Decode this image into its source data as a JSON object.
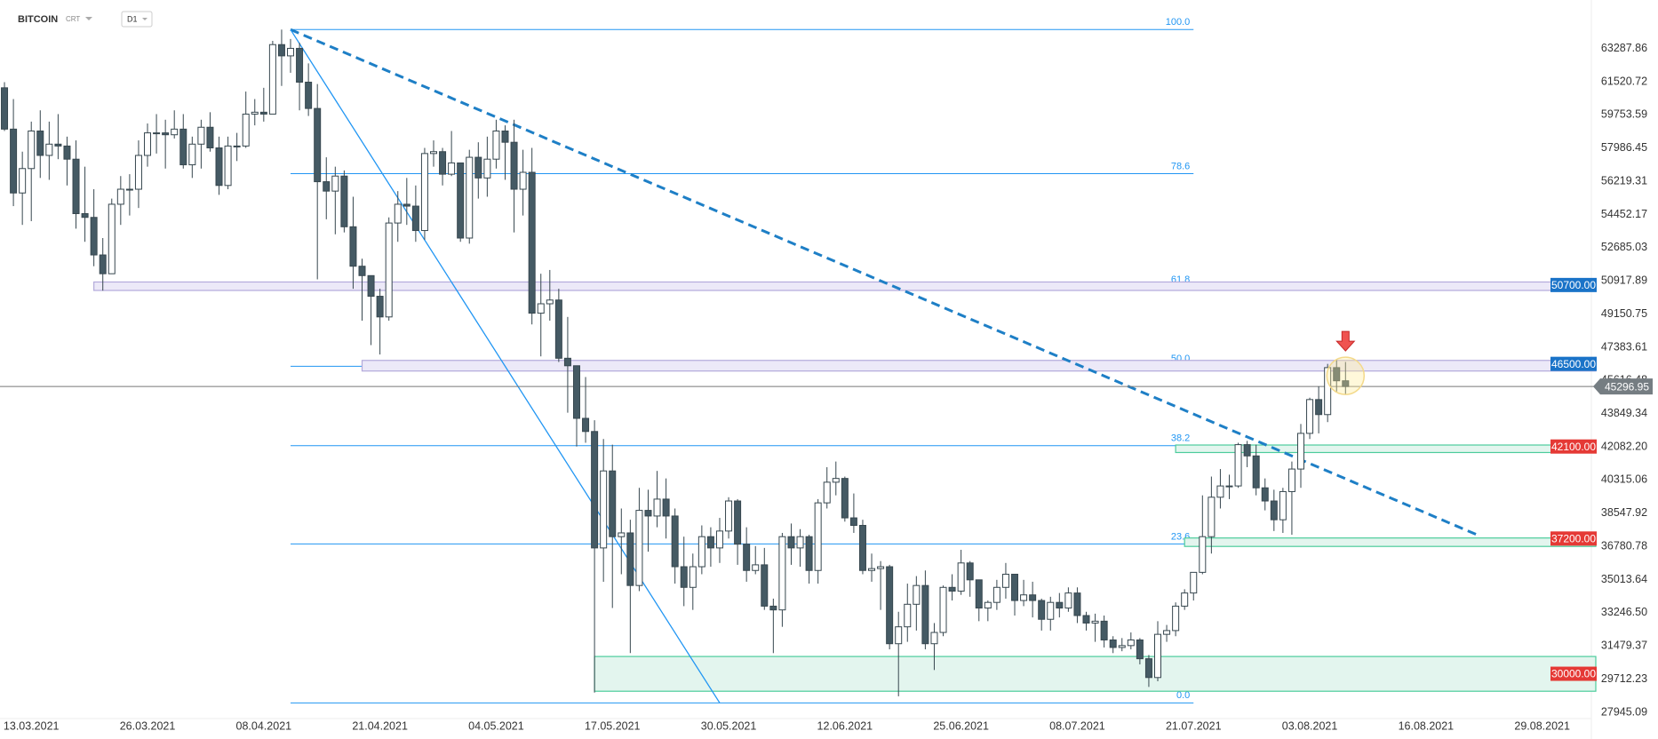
{
  "chart_data": {
    "type": "candlestick",
    "title": "BITCOIN",
    "subtitle": "CRT",
    "timeframe": "D1",
    "categories": [
      null,
      null,
      null,
      "13.03.2021",
      null,
      null,
      null,
      null,
      null,
      null,
      null,
      null,
      null,
      null,
      null,
      null,
      "26.03.2021",
      null,
      null,
      null,
      null,
      null,
      null,
      null,
      null,
      null,
      null,
      null,
      null,
      "08.04.2021",
      null,
      null,
      null,
      null,
      null,
      null,
      null,
      null,
      null,
      null,
      null,
      null,
      "21.04.2021",
      null,
      null,
      null,
      null,
      null,
      null,
      null,
      null,
      null,
      null,
      null,
      null,
      "04.05.2021",
      null,
      null,
      null,
      null,
      null,
      null,
      null,
      null,
      null,
      null,
      null,
      null,
      "17.05.2021",
      null,
      null,
      null,
      null,
      null,
      null,
      null,
      null,
      null,
      null,
      null,
      null,
      "30.05.2021",
      null,
      null,
      null,
      null,
      null,
      null,
      null,
      null,
      null,
      null,
      null,
      null,
      "12.06.2021",
      null,
      null,
      null,
      null,
      null,
      null,
      null,
      null,
      null,
      null,
      null,
      null,
      "25.06.2021",
      null,
      null,
      null,
      null,
      null,
      null,
      null,
      null,
      null,
      null,
      null,
      null,
      "08.07.2021",
      null,
      null,
      null,
      null,
      null,
      null,
      null,
      null,
      null,
      null,
      null,
      null,
      "21.07.2021",
      null,
      null,
      null,
      null,
      null,
      null,
      null,
      null,
      null,
      null,
      null,
      null,
      "03.08.2021",
      null,
      null,
      null,
      null,
      null,
      null,
      null,
      null,
      null,
      null,
      null,
      null,
      "16.08.2021",
      null,
      null,
      null,
      null,
      null,
      null,
      null,
      null,
      null,
      null,
      null,
      null,
      "29.08.2021",
      null,
      null,
      null,
      null,
      null
    ],
    "open": [
      61200,
      59000,
      55600,
      56900,
      58900,
      57600,
      58200,
      58100,
      57400,
      54500,
      54300,
      52300,
      51300,
      55000,
      55800,
      55800,
      57600,
      58800,
      58800,
      58700,
      59000,
      57100,
      58200,
      59100,
      58000,
      56000,
      58100,
      58100,
      59800,
      59900,
      59800,
      63500,
      62900,
      63300,
      61500,
      60100,
      56200,
      55700,
      56500,
      53800,
      51700,
      51200,
      50100,
      49000,
      54000,
      55000,
      54900,
      53600,
      57700,
      57800,
      56600,
      57200,
      53200,
      57500,
      56400,
      57400,
      58900,
      58300,
      55800,
      56700,
      49200,
      49700,
      49900,
      46800,
      46400,
      43600,
      42900,
      36700,
      40800,
      37300,
      37500,
      34700,
      38700,
      38400,
      39300,
      38400,
      35700,
      34600,
      35700,
      37300,
      36700,
      37600,
      39200,
      36900,
      35500,
      35800,
      33600,
      33400,
      37300,
      36700,
      37300,
      35500,
      39100,
      40200,
      40400,
      38300,
      37900,
      35500,
      35600,
      35700,
      31600,
      32500,
      33700,
      34700,
      31600,
      32200,
      34600,
      34400,
      35900,
      35000,
      33500,
      33800,
      34600,
      35300,
      33900,
      34200,
      33900,
      32900,
      33800,
      33500,
      34300,
      33100,
      32700,
      32800,
      31800,
      31400,
      31500,
      31800,
      30800,
      29800,
      32100,
      32300,
      33600,
      34300,
      35400,
      37300,
      39400,
      40000,
      40000,
      42200,
      41600,
      39900,
      39200,
      38200,
      39700,
      40900,
      42800,
      44600,
      43800,
      46300,
      45600,
      null,
      null,
      null,
      null,
      null,
      null,
      null,
      null,
      null,
      null,
      null,
      null,
      null,
      null,
      null,
      null,
      null,
      null,
      null,
      null,
      null,
      null,
      null,
      null,
      null,
      null,
      null
    ],
    "high": [
      61500,
      60600,
      57800,
      59400,
      60000,
      59400,
      59800,
      58600,
      58400,
      57000,
      55800,
      53200,
      55300,
      56500,
      56600,
      58400,
      59300,
      59800,
      59500,
      60000,
      59800,
      58600,
      59500,
      59900,
      58600,
      58600,
      58800,
      61000,
      60600,
      61200,
      63700,
      64300,
      63800,
      63600,
      62500,
      61400,
      57500,
      57000,
      56800,
      55400,
      52100,
      51200,
      50500,
      54300,
      55700,
      56400,
      56000,
      58000,
      58400,
      58000,
      58900,
      57200,
      57900,
      58300,
      58600,
      59500,
      59200,
      59500,
      57900,
      58000,
      51300,
      51500,
      50500,
      49000,
      46400,
      45800,
      43500,
      42500,
      42200,
      38800,
      38200,
      39900,
      39800,
      40800,
      40400,
      38800,
      37300,
      36400,
      37900,
      37800,
      38300,
      39400,
      39300,
      37800,
      36800,
      36700,
      34000,
      37500,
      38000,
      37700,
      37400,
      39300,
      41000,
      41300,
      40500,
      39600,
      38200,
      36400,
      36000,
      35800,
      33300,
      34800,
      35200,
      35500,
      32700,
      34700,
      35300,
      36600,
      36000,
      35000,
      33900,
      35000,
      35900,
      35300,
      35000,
      34900,
      34000,
      34100,
      34300,
      34600,
      34600,
      33300,
      33200,
      33100,
      32000,
      31900,
      32200,
      31900,
      31000,
      32800,
      32600,
      33800,
      34500,
      35400,
      39500,
      40500,
      40900,
      40600,
      42300,
      42400,
      42200,
      40400,
      39800,
      39900,
      41300,
      43300,
      44700,
      45300,
      46500,
      46700,
      46600,
      null,
      null,
      null,
      null,
      null,
      null,
      null,
      null,
      null,
      null,
      null,
      null,
      null,
      null,
      null,
      null,
      null,
      null,
      null,
      null,
      null,
      null,
      null,
      null,
      null,
      null,
      null
    ],
    "low": [
      58900,
      54900,
      53900,
      54100,
      56400,
      56300,
      57400,
      56000,
      53700,
      53000,
      51700,
      50400,
      51300,
      53900,
      54400,
      54800,
      57000,
      57700,
      56900,
      58500,
      56900,
      56400,
      56900,
      57800,
      55500,
      55800,
      57300,
      58000,
      59200,
      59400,
      59800,
      61300,
      62000,
      60000,
      59700,
      51000,
      54200,
      53400,
      53500,
      50500,
      48800,
      47500,
      47000,
      48800,
      53000,
      53900,
      53000,
      53100,
      57000,
      56000,
      56500,
      53000,
      52900,
      55300,
      55400,
      56900,
      56300,
      53500,
      54400,
      48600,
      46900,
      48800,
      46600,
      43900,
      42100,
      42300,
      29000,
      34900,
      33500,
      35300,
      31100,
      34400,
      36500,
      37800,
      37200,
      34800,
      33600,
      33400,
      35300,
      35700,
      35900,
      37200,
      35800,
      34900,
      35300,
      33400,
      31100,
      32500,
      35800,
      35700,
      34800,
      34800,
      38800,
      39500,
      38100,
      37500,
      35300,
      34900,
      33400,
      31300,
      28800,
      31700,
      32300,
      31300,
      30200,
      32000,
      33900,
      34200,
      34100,
      32800,
      32800,
      33400,
      34000,
      33100,
      33600,
      33000,
      32300,
      32300,
      33000,
      33300,
      32700,
      32300,
      31700,
      31400,
      31100,
      31200,
      31300,
      30500,
      29300,
      29600,
      31700,
      32000,
      33400,
      33900,
      35300,
      36400,
      38800,
      39300,
      39900,
      41000,
      39500,
      38700,
      37600,
      37500,
      37400,
      39900,
      42500,
      42800,
      43400,
      45000,
      44900,
      null,
      null,
      null,
      null,
      null,
      null,
      null,
      null,
      null,
      null,
      null,
      null,
      null,
      null,
      null,
      null,
      null,
      null,
      null,
      null,
      null,
      null,
      null,
      null,
      null,
      null,
      null
    ],
    "close": [
      59000,
      55600,
      56900,
      58900,
      57600,
      58200,
      58100,
      57400,
      54500,
      54300,
      52300,
      51300,
      55000,
      55800,
      55800,
      57600,
      58800,
      58800,
      58700,
      59000,
      57100,
      58200,
      59100,
      58000,
      56000,
      58100,
      58100,
      59800,
      59900,
      59800,
      63500,
      62900,
      63300,
      61500,
      60100,
      56200,
      55700,
      56500,
      53800,
      51700,
      51200,
      50100,
      49000,
      54000,
      55000,
      54900,
      53600,
      57700,
      57800,
      56600,
      57200,
      53200,
      57500,
      56400,
      57400,
      58900,
      58300,
      55800,
      56700,
      49200,
      49700,
      49900,
      46800,
      46400,
      43600,
      42900,
      36700,
      40800,
      37300,
      37500,
      34700,
      38700,
      38400,
      39300,
      38400,
      35700,
      34600,
      35700,
      37300,
      36700,
      37600,
      39200,
      36900,
      35500,
      35800,
      33600,
      33400,
      37300,
      36700,
      37300,
      35500,
      39100,
      40200,
      40400,
      38300,
      37900,
      35500,
      35600,
      35700,
      31600,
      32500,
      33700,
      34700,
      31600,
      32200,
      34600,
      34400,
      35900,
      35000,
      33500,
      33800,
      34600,
      35300,
      33900,
      34200,
      33900,
      32900,
      33800,
      33500,
      34300,
      33100,
      32700,
      32800,
      31800,
      31400,
      31500,
      31800,
      30800,
      29800,
      32100,
      32300,
      33600,
      34300,
      35400,
      37300,
      39400,
      40000,
      40000,
      42200,
      41600,
      39900,
      39200,
      38200,
      39700,
      40900,
      42800,
      44600,
      43800,
      46300,
      45600,
      45296.95,
      null,
      null,
      null,
      null,
      null,
      null,
      null,
      null,
      null,
      null,
      null,
      null,
      null,
      null,
      null,
      null,
      null,
      null,
      null,
      null,
      null,
      null,
      null,
      null,
      null,
      null,
      null
    ],
    "up_color": "#ffffff",
    "down_color": "#455a64",
    "outline_color": "#37474f",
    "ylim": [
      27614,
      65875
    ],
    "yticks": [
      63287.86,
      61520.72,
      59753.59,
      57986.45,
      56219.31,
      54452.17,
      52685.03,
      50917.89,
      49150.75,
      47383.61,
      45616.48,
      43849.34,
      {
        "value": 42082.2,
        "label": "42082.20"
      },
      40315.06,
      38547.92,
      36780.78,
      35013.64,
      {
        "value": 33246.5,
        "label": "33246.50"
      },
      31479.37,
      29712.23,
      27945.09
    ],
    "grid": false,
    "last_price": 45296.95,
    "fibonacci": {
      "start": 32,
      "end": 133,
      "color": "#2196f3",
      "levels": [
        {
          "label": "100.0",
          "price": 64300
        },
        {
          "label": "78.6",
          "price": 56628
        },
        {
          "label": "61.8",
          "price": 50605
        },
        {
          "label": "50.0",
          "price": 46375
        },
        {
          "label": "38.2",
          "price": 42145
        },
        {
          "label": "23.6",
          "price": 36911
        },
        {
          "label": "0.0",
          "price": 28450
        }
      ]
    },
    "zones": [
      {
        "start": 10,
        "top": 50860,
        "bottom": 50410,
        "fill": "#ece9f8",
        "stroke": "#b3aadb",
        "badge_color": "#1a73c8",
        "level": {
          "value": 50700,
          "label": "50700.00"
        }
      },
      {
        "start": 40,
        "top": 46685,
        "bottom": 46120,
        "fill": "#ece9f8",
        "stroke": "#b3aadb",
        "badge_color": "#1a73c8",
        "level": {
          "value": 46500,
          "label": "46500.00"
        }
      },
      {
        "start": 131,
        "top": 42180,
        "bottom": 41780,
        "fill": "#e3f5ee",
        "stroke": "#4ccc9c",
        "badge_color": "#e53935",
        "level": {
          "value": 42100,
          "label": "42100.00"
        }
      },
      {
        "start": 132,
        "top": 37230,
        "bottom": 36780,
        "fill": "#e3f5ee",
        "stroke": "#4ccc9c",
        "badge_color": "#e53935",
        "level": {
          "value": 37200,
          "label": "37200.00"
        }
      },
      {
        "start": 66,
        "top": 30920,
        "bottom": 29070,
        "fill": "#e3f5ee",
        "stroke": "#4ccc9c",
        "badge_color": "#e53935",
        "level": {
          "value": 30000,
          "label": "30000.00"
        }
      }
    ],
    "trendlines": [
      {
        "from": [
          32,
          64300
        ],
        "to": [
          165,
          37343
        ],
        "color": "#1e7fc6",
        "dashed": true
      },
      {
        "from": [
          32,
          64300
        ],
        "to": [
          80,
          28450
        ],
        "color": "#2196f3",
        "dashed": false
      }
    ]
  }
}
